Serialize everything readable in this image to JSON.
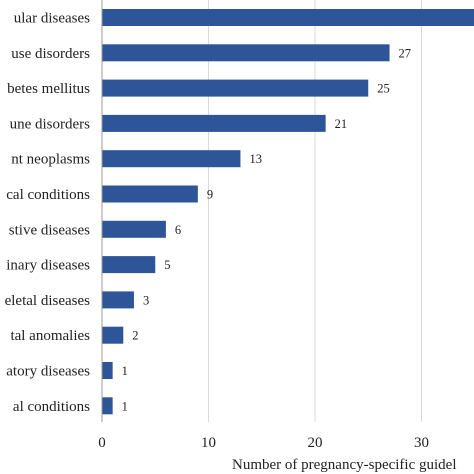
{
  "chart_data": {
    "type": "bar",
    "orientation": "horizontal",
    "categories": [
      "ular diseases",
      "use disorders",
      "betes mellitus",
      "une disorders",
      "nt neoplasms",
      "cal conditions",
      "stive diseases",
      "inary diseases",
      "eletal diseases",
      "tal anomalies",
      "atory diseases",
      "al conditions"
    ],
    "values": [
      35,
      27,
      25,
      21,
      13,
      9,
      6,
      5,
      3,
      2,
      1,
      1
    ],
    "data_labels": [
      "",
      "27",
      "25",
      "21",
      "13",
      "9",
      "6",
      "5",
      "3",
      "2",
      "1",
      "1"
    ],
    "xlabel": "Number of pregnancy-specific guidel",
    "xticks": [
      "0",
      "10",
      "20",
      "30"
    ],
    "xtick_values": [
      0,
      10,
      20,
      30
    ],
    "xlim": [
      0,
      35
    ],
    "grid": "vertical",
    "bar_color": "#2e5597"
  }
}
